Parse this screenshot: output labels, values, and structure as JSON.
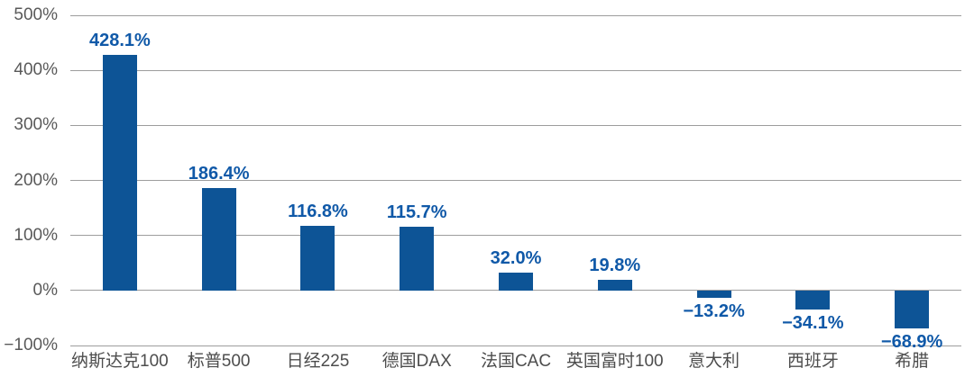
{
  "chart_data": {
    "type": "bar",
    "title": "",
    "xlabel": "",
    "ylabel": "",
    "categories": [
      "纳斯达克100",
      "标普500",
      "日经225",
      "德国DAX",
      "法国CAC",
      "英国富时100",
      "意大利",
      "西班牙",
      "希腊"
    ],
    "values": [
      428.1,
      186.4,
      116.8,
      115.7,
      32.0,
      19.8,
      -13.2,
      -34.1,
      -68.9
    ],
    "data_labels": [
      "428.1%",
      "186.4%",
      "116.8%",
      "115.7%",
      "32.0%",
      "19.8%",
      "−13.2%",
      "−34.1%",
      "−68.9%"
    ],
    "y_ticks": [
      {
        "value": 500,
        "label": "500%"
      },
      {
        "value": 400,
        "label": "400%"
      },
      {
        "value": 300,
        "label": "300%"
      },
      {
        "value": 200,
        "label": "200%"
      },
      {
        "value": 100,
        "label": "100%"
      },
      {
        "value": 0,
        "label": "0%"
      },
      {
        "value": -100,
        "label": "−100%"
      }
    ],
    "ylim": [
      -100,
      500
    ],
    "grid": true,
    "legend": false,
    "colors": {
      "bar": "#0d5496",
      "data_label": "#1059a8",
      "tick_label": "#595959",
      "category_label": "#4d4d4d",
      "gridline": "#9d9d9d"
    }
  }
}
